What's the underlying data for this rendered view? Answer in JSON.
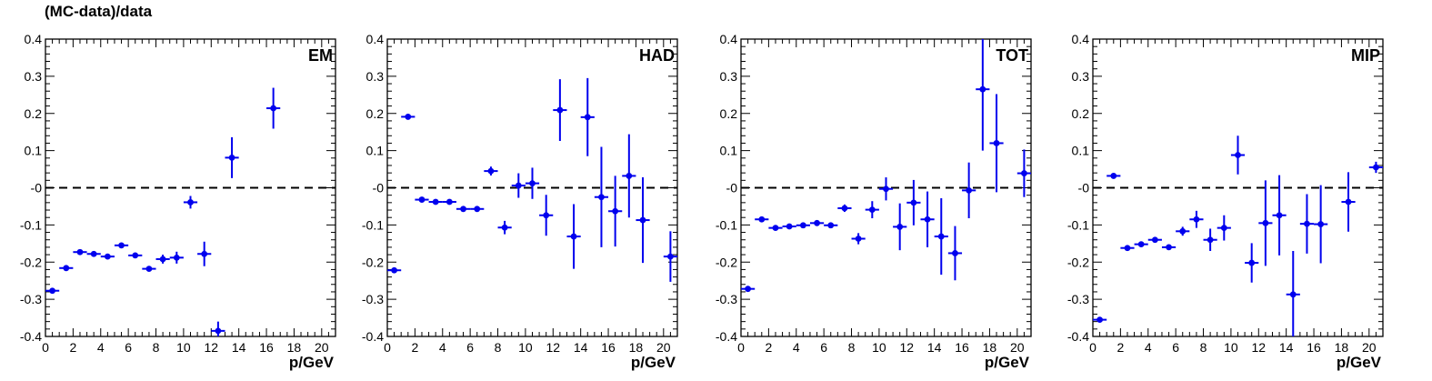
{
  "figure": {
    "ylabel": "(MC-data)/data"
  },
  "chart_data": [
    {
      "type": "scatter",
      "title": "EM",
      "xlabel": "p/GeV",
      "ylabel": "(MC-data)/data",
      "xlim": [
        0,
        21
      ],
      "ylim": [
        -0.4,
        0.4
      ],
      "xticks": [
        "0",
        "2",
        "4",
        "6",
        "8",
        "10",
        "12",
        "14",
        "16",
        "18",
        "20"
      ],
      "yticks": [
        "-0.4",
        "-0.3",
        "-0.2",
        "-0.1",
        "-0",
        "0.1",
        "0.2",
        "0.3",
        "0.4"
      ],
      "reference_line": 0,
      "color": "#0000ee",
      "series": [
        {
          "x": [
            0.5,
            1.5,
            2.5,
            3.5,
            4.5,
            5.5,
            6.5,
            7.5,
            8.5,
            9.5,
            10.5,
            11.5,
            12.5,
            13.5,
            16.5
          ],
          "y": [
            -0.277,
            -0.216,
            -0.173,
            -0.178,
            -0.185,
            -0.155,
            -0.182,
            -0.218,
            -0.192,
            -0.188,
            -0.039,
            -0.178,
            -0.385,
            0.081,
            0.214
          ],
          "yerr": [
            0.004,
            0.004,
            0.004,
            0.004,
            0.004,
            0.004,
            0.004,
            0.006,
            0.012,
            0.016,
            0.017,
            0.033,
            0.025,
            0.055,
            0.055
          ]
        }
      ]
    },
    {
      "type": "scatter",
      "title": "HAD",
      "xlabel": "p/GeV",
      "ylabel": "",
      "xlim": [
        0,
        21
      ],
      "ylim": [
        -0.4,
        0.4
      ],
      "xticks": [
        "0",
        "2",
        "4",
        "6",
        "8",
        "10",
        "12",
        "14",
        "16",
        "18",
        "20"
      ],
      "yticks": [
        "-0.4",
        "-0.3",
        "-0.2",
        "-0.1",
        "-0",
        "0.1",
        "0.2",
        "0.3",
        "0.4"
      ],
      "reference_line": 0,
      "color": "#0000ee",
      "series": [
        {
          "x": [
            0.5,
            1.5,
            2.5,
            3.5,
            4.5,
            5.5,
            6.5,
            7.5,
            8.5,
            9.5,
            10.5,
            11.5,
            12.5,
            13.5,
            14.5,
            15.5,
            16.5,
            17.5,
            18.5,
            20.5
          ],
          "y": [
            -0.222,
            0.191,
            -0.032,
            -0.038,
            -0.038,
            -0.057,
            -0.057,
            0.045,
            -0.107,
            0.006,
            0.012,
            -0.074,
            0.209,
            -0.131,
            0.19,
            -0.025,
            -0.063,
            0.032,
            -0.087,
            -0.185
          ],
          "yerr": [
            0.004,
            0.004,
            0.004,
            0.004,
            0.004,
            0.004,
            0.004,
            0.012,
            0.018,
            0.033,
            0.042,
            0.055,
            0.083,
            0.087,
            0.105,
            0.135,
            0.095,
            0.112,
            0.115,
            0.068
          ]
        }
      ]
    },
    {
      "type": "scatter",
      "title": "TOT",
      "xlabel": "p/GeV",
      "ylabel": "",
      "xlim": [
        0,
        21
      ],
      "ylim": [
        -0.4,
        0.4
      ],
      "xticks": [
        "0",
        "2",
        "4",
        "6",
        "8",
        "10",
        "12",
        "14",
        "16",
        "18",
        "20"
      ],
      "yticks": [
        "-0.4",
        "-0.3",
        "-0.2",
        "-0.1",
        "-0",
        "0.1",
        "0.2",
        "0.3",
        "0.4"
      ],
      "reference_line": 0,
      "color": "#0000ee",
      "series": [
        {
          "x": [
            0.5,
            1.5,
            2.5,
            3.5,
            4.5,
            5.5,
            6.5,
            7.5,
            8.5,
            9.5,
            10.5,
            11.5,
            12.5,
            13.5,
            14.5,
            15.5,
            16.5,
            17.5,
            18.5,
            20.5
          ],
          "y": [
            -0.272,
            -0.085,
            -0.108,
            -0.104,
            -0.101,
            -0.095,
            -0.101,
            -0.055,
            -0.137,
            -0.059,
            -0.003,
            -0.105,
            -0.04,
            -0.085,
            -0.131,
            -0.176,
            -0.007,
            0.265,
            0.12,
            0.039
          ],
          "yerr": [
            0.004,
            0.004,
            0.004,
            0.004,
            0.004,
            0.004,
            0.004,
            0.01,
            0.015,
            0.023,
            0.031,
            0.063,
            0.061,
            0.075,
            0.103,
            0.073,
            0.075,
            0.165,
            0.132,
            0.064
          ]
        }
      ]
    },
    {
      "type": "scatter",
      "title": "MIP",
      "xlabel": "p/GeV",
      "ylabel": "",
      "xlim": [
        0,
        21
      ],
      "ylim": [
        -0.4,
        0.4
      ],
      "xticks": [
        "0",
        "2",
        "4",
        "6",
        "8",
        "10",
        "12",
        "14",
        "16",
        "18",
        "20"
      ],
      "yticks": [
        "-0.4",
        "-0.3",
        "-0.2",
        "-0.1",
        "-0",
        "0.1",
        "0.2",
        "0.3",
        "0.4"
      ],
      "reference_line": 0,
      "color": "#0000ee",
      "series": [
        {
          "x": [
            0.5,
            1.5,
            2.5,
            3.5,
            4.5,
            5.5,
            6.5,
            7.5,
            8.5,
            9.5,
            10.5,
            11.5,
            12.5,
            13.5,
            14.5,
            15.5,
            16.5,
            18.5,
            20.5
          ],
          "y": [
            -0.355,
            0.032,
            -0.162,
            -0.152,
            -0.14,
            -0.16,
            -0.117,
            -0.085,
            -0.14,
            -0.108,
            0.088,
            -0.202,
            -0.095,
            -0.074,
            -0.287,
            -0.097,
            -0.098,
            -0.038,
            0.055
          ],
          "yerr": [
            0.004,
            0.004,
            0.004,
            0.004,
            0.004,
            0.004,
            0.012,
            0.023,
            0.03,
            0.034,
            0.052,
            0.053,
            0.115,
            0.108,
            0.117,
            0.08,
            0.105,
            0.08,
            0.015
          ]
        }
      ]
    }
  ]
}
